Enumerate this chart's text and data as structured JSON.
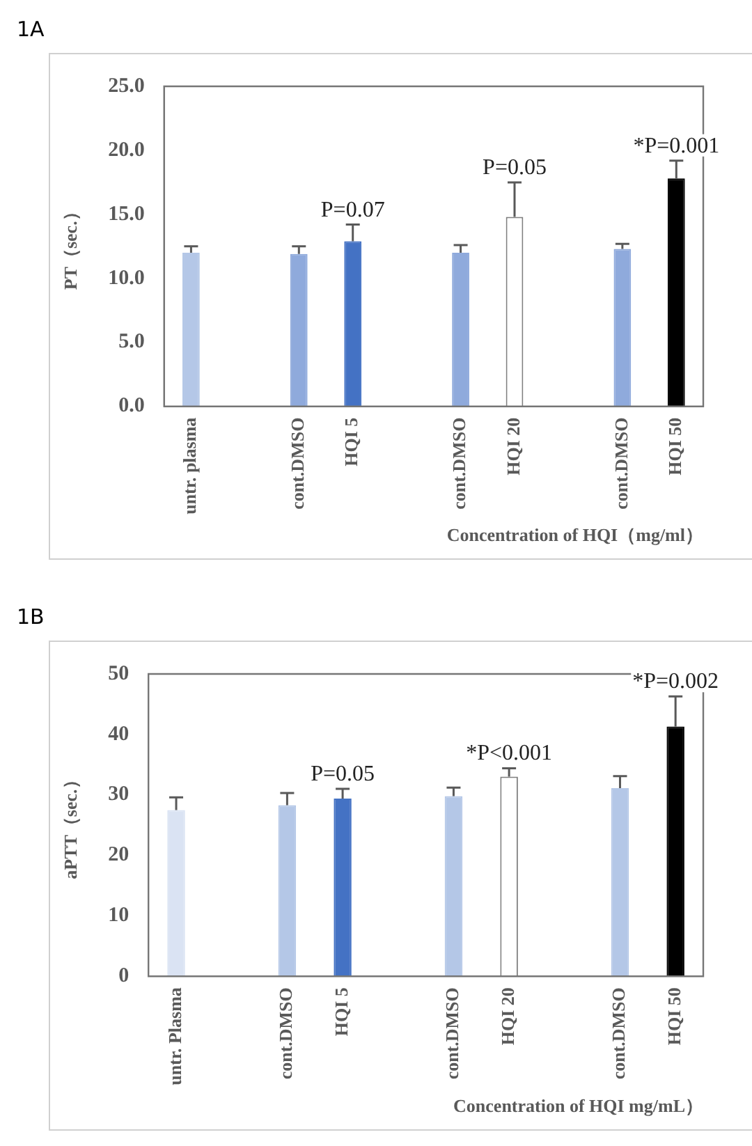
{
  "chart_data": [
    {
      "type": "bar",
      "title": "1A",
      "ylabel": "PT（sec.）",
      "xlabel": "Concentration of HQI（mg/ml）",
      "categories": [
        "untr. plasma",
        null,
        "cont.DMSO",
        "HQI 5",
        null,
        "cont.DMSO",
        "HQI 20",
        null,
        "cont.DMSO",
        "HQI 50"
      ],
      "values": [
        12.0,
        null,
        11.9,
        12.9,
        null,
        12.0,
        14.8,
        null,
        12.3,
        17.8
      ],
      "errors": [
        [
          12.0,
          12.5
        ],
        null,
        [
          11.9,
          12.5
        ],
        [
          12.9,
          14.2
        ],
        null,
        [
          12.0,
          12.6
        ],
        [
          14.8,
          17.5
        ],
        null,
        [
          12.3,
          12.7
        ],
        [
          17.8,
          19.2
        ]
      ],
      "colors": [
        "#b4c7e7",
        "#ffffff",
        "#8faadc",
        "#4472c4",
        "#ffffff",
        "#8faadc",
        "#ffffff",
        "#ffffff",
        "#8faadc",
        "#000000"
      ],
      "ylim": [
        0,
        25
      ],
      "yticks": [
        {
          "value": 0,
          "label": "0.0"
        },
        {
          "value": 5,
          "label": "5.0"
        },
        {
          "value": 10,
          "label": "10.0"
        },
        {
          "value": 15,
          "label": "15.0"
        },
        {
          "value": 20,
          "label": "20.0"
        },
        {
          "value": 25,
          "label": "25.0"
        }
      ],
      "annotations": [
        {
          "text": "P=0.07",
          "x": "HQI 5",
          "y": 14.2
        },
        {
          "text": "P=0.05",
          "x": "HQI 20",
          "y": 17.5
        },
        {
          "text": "*P=0.001",
          "x": "HQI 50",
          "y": 19.2
        }
      ],
      "grid": false,
      "legend": false
    },
    {
      "type": "bar",
      "title": "1B",
      "ylabel": "aPTT（sec.）",
      "xlabel": "Concentration of HQI mg/mL）",
      "categories": [
        "untr. Plasma",
        null,
        "cont.DMSO",
        "HQI 5",
        null,
        "cont.DMSO",
        "HQI 20",
        null,
        "cont.DMSO",
        "HQI 50"
      ],
      "values": [
        27.5,
        null,
        28.3,
        29.4,
        null,
        29.8,
        33.0,
        null,
        31.1,
        41.3
      ],
      "errors": [
        [
          27.5,
          29.6
        ],
        null,
        [
          28.3,
          30.3
        ],
        [
          29.4,
          31.0
        ],
        null,
        [
          29.8,
          31.2
        ],
        [
          33.0,
          34.4
        ],
        null,
        [
          31.1,
          33.1
        ],
        [
          41.3,
          46.3
        ]
      ],
      "colors": [
        "#dae3f3",
        "#ffffff",
        "#b4c7e7",
        "#4472c4",
        "#ffffff",
        "#b4c7e7",
        "#ffffff",
        "#ffffff",
        "#b4c7e7",
        "#000000"
      ],
      "ylim": [
        0,
        50
      ],
      "yticks": [
        0,
        10,
        20,
        30,
        40,
        50
      ],
      "annotations": [
        {
          "text": "P=0.05",
          "x": "HQI 5",
          "y": 31.0
        },
        {
          "text": "*P<0.001",
          "x": "HQI 20",
          "y": 34.4
        },
        {
          "text": "*P=0.002",
          "x": "HQI 50",
          "y": 46.3
        }
      ],
      "grid": false,
      "legend": false
    }
  ]
}
